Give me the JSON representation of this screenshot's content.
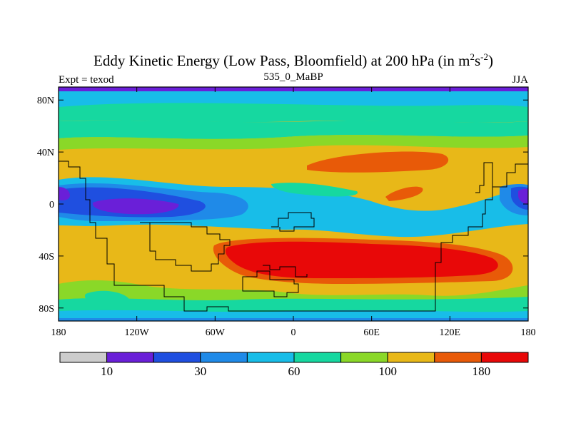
{
  "chart_data": {
    "type": "heatmap",
    "title_main": "Eddy Kinetic Energy (Low Pass, Bloomfield) at 200 hPa (in m",
    "title_sup1": "2",
    "title_s": "s",
    "title_sup2": "-2",
    "title_close": ")",
    "subtitle_left": "Expt = texod",
    "subtitle_center": "535_0_MaBP",
    "subtitle_right": "JJA",
    "x_axis": {
      "range": [
        -180,
        180
      ],
      "ticks": [
        {
          "value": -180,
          "label": "180"
        },
        {
          "value": -120,
          "label": "120W"
        },
        {
          "value": -60,
          "label": "60W"
        },
        {
          "value": 0,
          "label": "0"
        },
        {
          "value": 60,
          "label": "60E"
        },
        {
          "value": 120,
          "label": "120E"
        },
        {
          "value": 180,
          "label": "180"
        }
      ]
    },
    "y_axis": {
      "range": [
        -90,
        90
      ],
      "ticks": [
        {
          "value": 80,
          "label": "80N"
        },
        {
          "value": 40,
          "label": "40N"
        },
        {
          "value": 0,
          "label": "0"
        },
        {
          "value": -40,
          "label": "40S"
        },
        {
          "value": -80,
          "label": "80S"
        }
      ]
    },
    "colorbar": {
      "colors": [
        "#cccccc",
        "#6a1fd8",
        "#1f4fe0",
        "#1f8ae8",
        "#18bde8",
        "#16d8a0",
        "#8ad828",
        "#e8b818",
        "#e85a08",
        "#e80808"
      ],
      "labels": [
        {
          "after_box": 1,
          "text": "10"
        },
        {
          "after_box": 3,
          "text": "30"
        },
        {
          "after_box": 5,
          "text": "60"
        },
        {
          "after_box": 7,
          "text": "100"
        },
        {
          "after_box": 9,
          "text": "180"
        }
      ]
    }
  }
}
